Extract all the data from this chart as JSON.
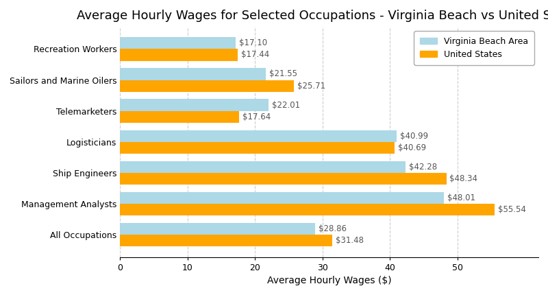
{
  "title": "Average Hourly Wages for Selected Occupations - Virginia Beach vs United States",
  "xlabel": "Average Hourly Wages ($)",
  "occupations": [
    "Recreation Workers",
    "Sailors and Marine Oilers",
    "Telemarketers",
    "Logisticians",
    "Ship Engineers",
    "Management Analysts",
    "All Occupations"
  ],
  "us_values": [
    17.44,
    25.71,
    17.64,
    40.69,
    48.34,
    55.54,
    31.48
  ],
  "vb_values": [
    17.1,
    21.55,
    22.01,
    40.99,
    42.28,
    48.01,
    28.86
  ],
  "us_color": "#FFA500",
  "vb_color": "#ADD8E6",
  "us_label": "United States",
  "vb_label": "Virginia Beach Area",
  "bar_height": 0.38,
  "xlim": [
    0,
    62
  ],
  "xticks": [
    0,
    10,
    20,
    30,
    40,
    50
  ],
  "label_color": "#555555",
  "background_color": "#ffffff",
  "plot_bg_color": "#ffffff",
  "grid_color": "#cccccc",
  "title_fontsize": 13,
  "axis_label_fontsize": 10,
  "tick_fontsize": 9,
  "legend_fontsize": 9,
  "bar_label_fontsize": 8.5
}
